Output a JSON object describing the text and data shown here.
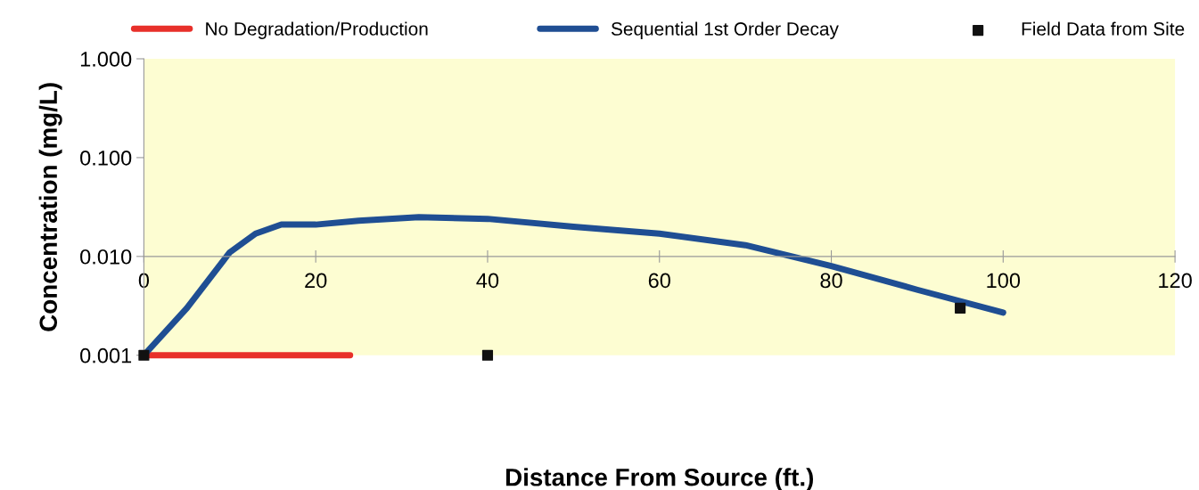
{
  "chart_data": {
    "type": "line",
    "xlabel": "Distance From Source (ft.)",
    "ylabel": "Concentration (mg/L)",
    "log": "y",
    "xlim": [
      0,
      120
    ],
    "xticks": [
      0,
      20,
      40,
      60,
      80,
      100,
      120
    ],
    "ylim": [
      0.001,
      1
    ],
    "yticks": [
      {
        "value": 0.001,
        "label": "0.001"
      },
      {
        "value": 0.01,
        "label": "0.010"
      },
      {
        "value": 0.1,
        "label": "0.100"
      },
      {
        "value": 1,
        "label": "1.000"
      }
    ],
    "legend": "top",
    "grid": false,
    "series": [
      {
        "name": "No Degradation/Production",
        "color": "#e8302a",
        "x": [
          0,
          24
        ],
        "values": [
          0.001,
          0.001
        ]
      },
      {
        "name": "Sequential 1st Order Decay",
        "color": "#1f4e93",
        "x": [
          0,
          5,
          10,
          13,
          16,
          20,
          25,
          32,
          40,
          50,
          60,
          70,
          80,
          90,
          100
        ],
        "values": [
          0.001,
          0.003,
          0.011,
          0.017,
          0.021,
          0.021,
          0.023,
          0.025,
          0.024,
          0.02,
          0.017,
          0.013,
          0.008,
          0.0046,
          0.0027
        ]
      },
      {
        "name": "Field Data from Site",
        "color": "#111111",
        "type": "scatter",
        "marker": "square",
        "x": [
          0,
          40,
          95
        ],
        "values": [
          0.001,
          0.001,
          0.003
        ]
      }
    ]
  }
}
